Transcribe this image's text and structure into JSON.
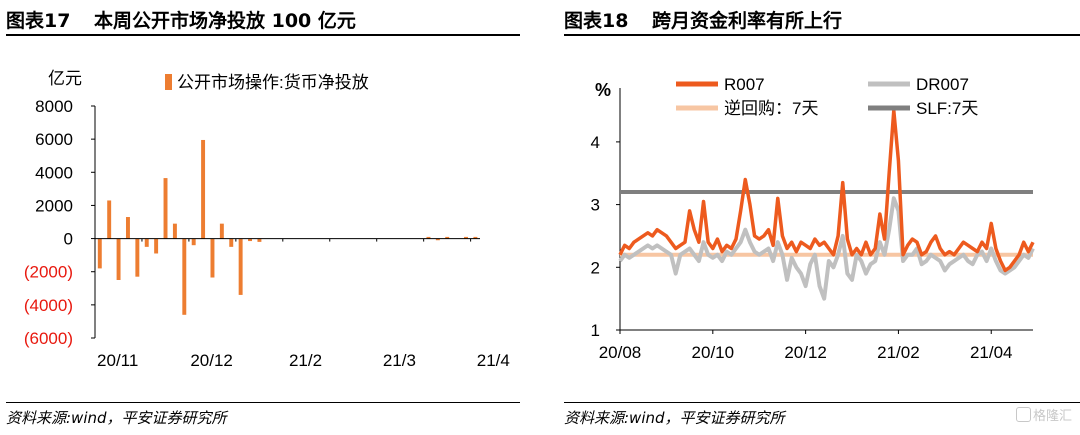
{
  "panels": [
    {
      "fig_id": "图表17",
      "title": "本周公开市场净投放 100 亿元",
      "source": "资料来源:wind，平安证券研究所"
    },
    {
      "fig_id": "图表18",
      "title": "跨月资金利率有所上行",
      "source": "资料来源:wind，平安证券研究所"
    }
  ],
  "watermark": "格隆汇",
  "chart_data": [
    {
      "type": "bar",
      "ylabel": "亿元",
      "legend": "公开市场操作:货币净投放",
      "ylim": [
        -6000,
        8000
      ],
      "yticks": [
        "8000",
        "6000",
        "4000",
        "2000",
        "0",
        "(2000)",
        "(4000)",
        "(6000)"
      ],
      "ytick_values": [
        8000,
        6000,
        4000,
        2000,
        0,
        -2000,
        -4000,
        -6000
      ],
      "negative_tick_color": "#e8190f",
      "bar_color": "#ed7d31",
      "xticks": [
        "20/11",
        "20/12",
        "21/2",
        "21/3",
        "21/4"
      ],
      "xtick_index": [
        0,
        10,
        20,
        30,
        40
      ],
      "values": [
        -1800,
        2300,
        -2500,
        1300,
        -2300,
        -500,
        -900,
        3650,
        900,
        -4600,
        -400,
        5950,
        -2350,
        900,
        -500,
        -3400,
        -150,
        -200,
        0,
        0,
        0,
        0,
        0,
        0,
        0,
        0,
        0,
        0,
        0,
        0,
        0,
        0,
        0,
        0,
        0,
        100,
        -100,
        100,
        0,
        100,
        100
      ]
    },
    {
      "type": "line",
      "ylabel": "%",
      "ylim": [
        1,
        4.7
      ],
      "yticks": [
        "1",
        "2",
        "3",
        "4"
      ],
      "xticks": [
        "20/08",
        "20/10",
        "20/12",
        "21/02",
        "21/04"
      ],
      "xtick_index": [
        0,
        20,
        40,
        60,
        80
      ],
      "n_points": 90,
      "legend_position": "top",
      "series": [
        {
          "name": "R007",
          "color": "#ed5a1e",
          "values": [
            2.2,
            2.35,
            2.3,
            2.4,
            2.45,
            2.5,
            2.55,
            2.5,
            2.6,
            2.55,
            2.5,
            2.4,
            2.3,
            2.35,
            2.4,
            2.9,
            2.6,
            2.4,
            3.05,
            2.4,
            2.3,
            2.45,
            2.25,
            2.35,
            2.3,
            2.45,
            2.9,
            3.4,
            3.0,
            2.5,
            2.45,
            2.5,
            2.6,
            2.35,
            3.1,
            2.5,
            2.3,
            2.4,
            2.25,
            2.4,
            2.35,
            2.3,
            2.45,
            2.35,
            2.4,
            2.3,
            2.2,
            2.5,
            3.35,
            2.45,
            2.2,
            2.3,
            2.2,
            2.4,
            2.2,
            2.3,
            2.85,
            2.45,
            3.5,
            4.5,
            3.7,
            2.2,
            2.35,
            2.45,
            2.4,
            2.2,
            2.25,
            2.4,
            2.5,
            2.3,
            2.2,
            2.25,
            2.2,
            2.3,
            2.4,
            2.35,
            2.3,
            2.25,
            2.4,
            2.3,
            2.7,
            2.3,
            2.1,
            1.95,
            2.0,
            2.1,
            2.2,
            2.4,
            2.25,
            2.4
          ]
        },
        {
          "name": "DR007",
          "color": "#c0c0c0",
          "values": [
            2.1,
            2.2,
            2.15,
            2.2,
            2.25,
            2.3,
            2.35,
            2.3,
            2.35,
            2.3,
            2.25,
            2.2,
            1.9,
            2.2,
            2.25,
            2.3,
            2.2,
            2.1,
            2.4,
            2.2,
            2.15,
            2.2,
            2.1,
            2.25,
            2.2,
            2.3,
            2.4,
            2.6,
            2.4,
            2.25,
            2.2,
            2.25,
            2.3,
            2.1,
            2.4,
            2.2,
            1.8,
            2.15,
            2.0,
            1.9,
            1.7,
            2.05,
            2.2,
            1.7,
            1.5,
            2.1,
            2.0,
            2.2,
            2.5,
            1.9,
            1.8,
            2.2,
            2.1,
            1.9,
            2.05,
            2.1,
            2.4,
            2.2,
            2.6,
            3.1,
            2.9,
            2.1,
            2.2,
            2.2,
            2.3,
            2.05,
            2.1,
            2.2,
            2.15,
            2.1,
            1.95,
            2.05,
            2.1,
            2.15,
            2.2,
            2.1,
            2.05,
            2.2,
            2.25,
            2.1,
            2.3,
            2.1,
            1.95,
            1.9,
            1.95,
            2.0,
            2.1,
            2.2,
            2.15,
            2.3
          ]
        },
        {
          "name": "逆回购：7天",
          "color": "#f7c6a3",
          "values": [
            2.2,
            2.2
          ]
        },
        {
          "name": "SLF:7天",
          "color": "#7f7f7f",
          "values": [
            3.2,
            3.2
          ]
        }
      ]
    }
  ]
}
